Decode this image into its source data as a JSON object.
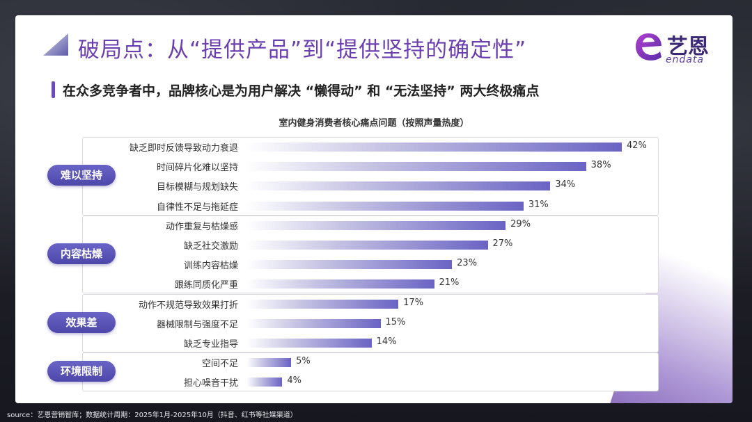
{
  "header": {
    "title": "破局点：从“提供产品”到“提供坚持的确定性”",
    "subtitle": "在众多竞争者中，品牌核心是为用户解决 “懒得动” 和 “无法坚持” 两大终极痛点"
  },
  "logo": {
    "name_cn": "艺恩",
    "name_en": "endata"
  },
  "footer": {
    "source": "source：艺恩营销智库；数据统计周期：2025年1月-2025年10月（抖音、红书等社媒渠道）"
  },
  "chart_data": {
    "type": "bar",
    "orientation": "horizontal",
    "title": "室内健身消费者核心痛点问题（按照声量热度）",
    "xlim": [
      0,
      42
    ],
    "groups": [
      {
        "name": "难以坚持",
        "items": [
          {
            "label": "缺乏即时反馈导致动力衰退",
            "value": 42,
            "value_label": "42%"
          },
          {
            "label": "时间碎片化难以坚持",
            "value": 38,
            "value_label": "38%"
          },
          {
            "label": "目标模糊与规划缺失",
            "value": 34,
            "value_label": "34%"
          },
          {
            "label": "自律性不足与拖延症",
            "value": 31,
            "value_label": "31%"
          }
        ]
      },
      {
        "name": "内容枯燥",
        "items": [
          {
            "label": "动作重复与枯燥感",
            "value": 29,
            "value_label": "29%"
          },
          {
            "label": "缺乏社交激励",
            "value": 27,
            "value_label": "27%"
          },
          {
            "label": "训练内容枯燥",
            "value": 23,
            "value_label": "23%"
          },
          {
            "label": "跟练同质化严重",
            "value": 21,
            "value_label": "21%"
          }
        ]
      },
      {
        "name": "效果差",
        "items": [
          {
            "label": "动作不规范导致效果打折",
            "value": 17,
            "value_label": "17%"
          },
          {
            "label": "器械限制与强度不足",
            "value": 15,
            "value_label": "15%"
          },
          {
            "label": "缺乏专业指导",
            "value": 14,
            "value_label": "14%"
          }
        ]
      },
      {
        "name": "环境限制",
        "items": [
          {
            "label": "空间不足",
            "value": 5,
            "value_label": "5%"
          },
          {
            "label": "担心噪音干扰",
            "value": 4,
            "value_label": "4%"
          }
        ]
      }
    ],
    "colors": {
      "bar_end": "#6a63c4",
      "pill": "#5650b4",
      "title": "#6b3fb0"
    }
  }
}
